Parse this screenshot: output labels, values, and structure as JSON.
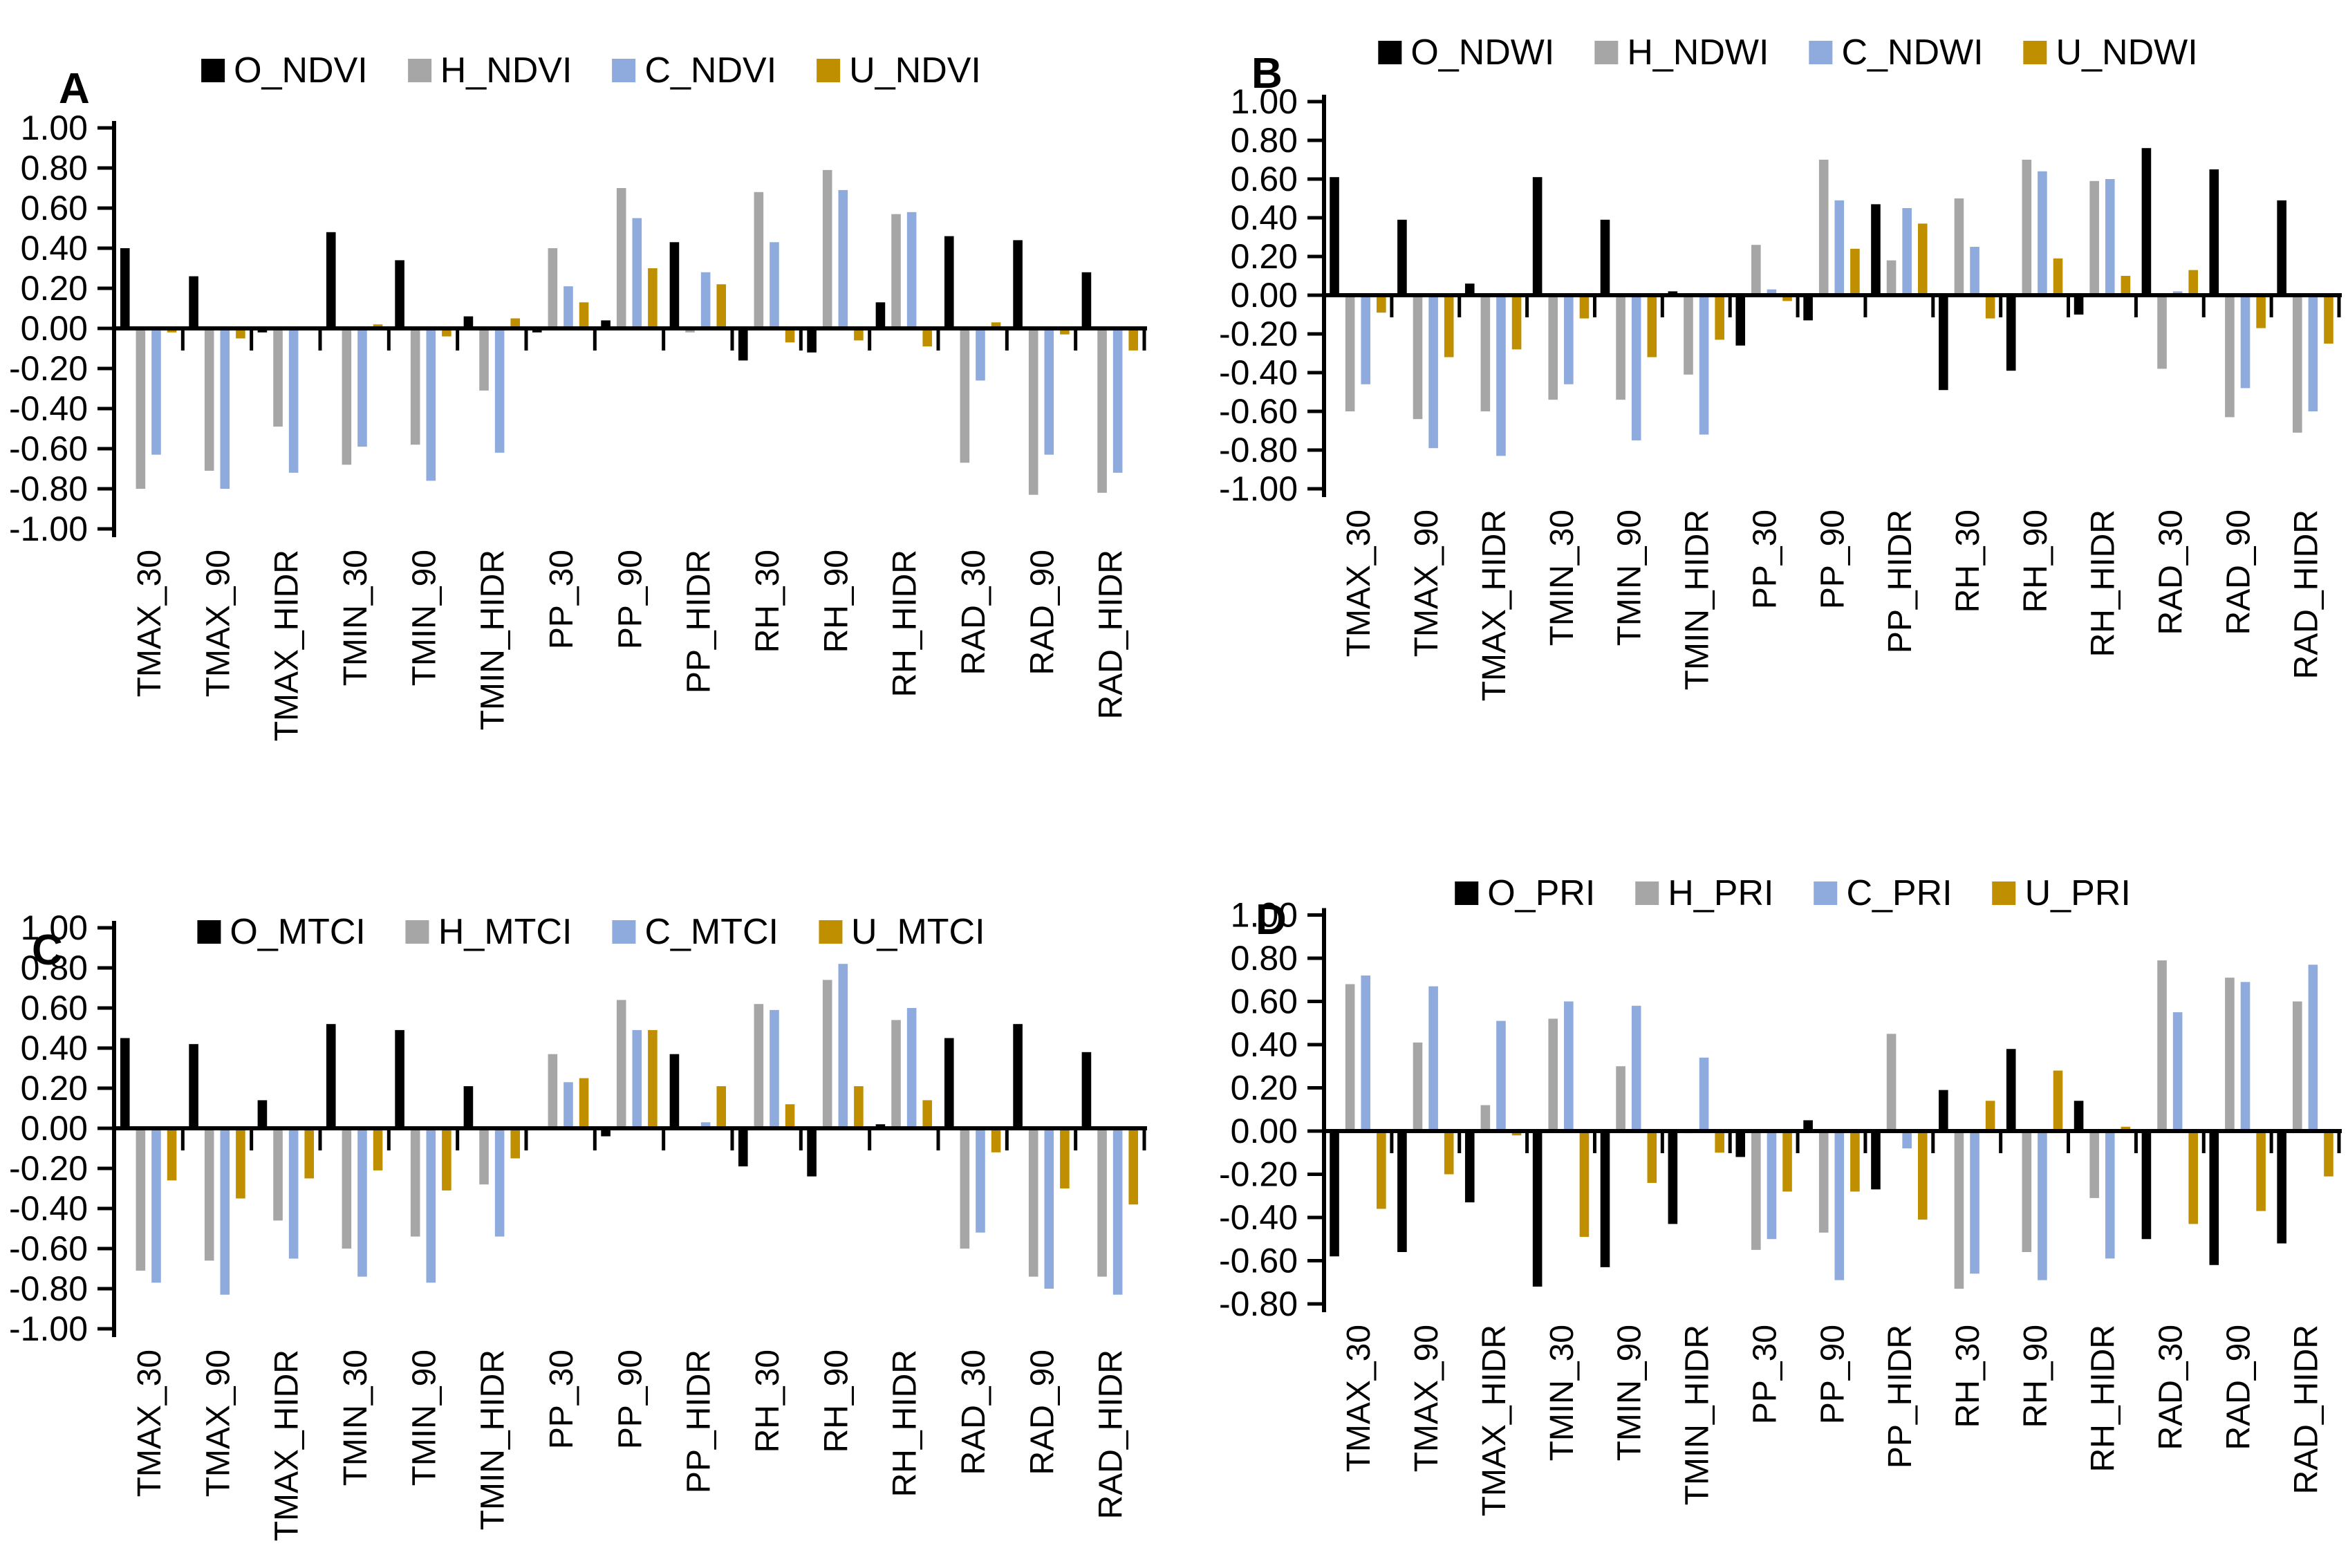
{
  "chart_data": [
    {
      "type": "bar",
      "panel_letter": "A",
      "categories": [
        "TMAX_30",
        "TMAX_90",
        "TMAX_HIDR",
        "TMIN_30",
        "TMIN_90",
        "TMIN_HIDR",
        "PP_30",
        "PP_90",
        "PP_HIDR",
        "RH_30",
        "RH_90",
        "RH_HIDR",
        "RAD_30",
        "RAD_90",
        "RAD_HIDR"
      ],
      "series": [
        {
          "name": "O_NDVI",
          "color": "#000000",
          "values": [
            0.4,
            0.26,
            -0.02,
            0.48,
            0.34,
            0.06,
            -0.02,
            0.04,
            0.43,
            -0.16,
            -0.12,
            0.13,
            0.46,
            0.44,
            0.28
          ]
        },
        {
          "name": "H_NDVI",
          "color": "#A6A6A6",
          "values": [
            -0.8,
            -0.71,
            -0.49,
            -0.68,
            -0.58,
            -0.31,
            0.4,
            0.7,
            -0.02,
            0.68,
            0.79,
            0.57,
            -0.67,
            -0.83,
            -0.82
          ]
        },
        {
          "name": "C_NDVI",
          "color": "#8FAADC",
          "values": [
            -0.63,
            -0.8,
            -0.72,
            -0.59,
            -0.76,
            -0.62,
            0.21,
            0.55,
            0.28,
            0.43,
            0.69,
            0.58,
            -0.26,
            -0.63,
            -0.72
          ]
        },
        {
          "name": "U_NDVI",
          "color": "#BF8F00",
          "values": [
            -0.02,
            -0.05,
            -0.01,
            0.02,
            -0.04,
            0.05,
            0.13,
            0.3,
            0.22,
            -0.07,
            -0.06,
            -0.09,
            0.03,
            -0.03,
            -0.11
          ]
        }
      ],
      "ylim": [
        -1.0,
        1.0
      ],
      "ytick_step": 0.2,
      "ytick_labels": [
        "1.00",
        "0.80",
        "0.60",
        "0.40",
        "0.20",
        "0.00",
        "-0.20",
        "-0.40",
        "-0.60",
        "-0.80",
        "-1.00"
      ],
      "legend_position": "top",
      "grid": false
    },
    {
      "type": "bar",
      "panel_letter": "B",
      "categories": [
        "TMAX_30",
        "TMAX_90",
        "TMAX_HIDR",
        "TMIN_30",
        "TMIN_90",
        "TMIN_HIDR",
        "PP_30",
        "PP_90",
        "PP_HIDR",
        "RH_30",
        "RH_90",
        "RH_HIDR",
        "RAD_30",
        "RAD_90",
        "RAD_HIDR"
      ],
      "series": [
        {
          "name": "O_NDWI",
          "color": "#000000",
          "values": [
            0.61,
            0.39,
            0.06,
            0.61,
            0.39,
            0.02,
            -0.26,
            -0.13,
            0.47,
            -0.49,
            -0.39,
            -0.1,
            0.76,
            0.65,
            0.49
          ]
        },
        {
          "name": "H_NDWI",
          "color": "#A6A6A6",
          "values": [
            -0.6,
            -0.64,
            -0.6,
            -0.54,
            -0.54,
            -0.41,
            0.26,
            0.7,
            0.18,
            0.5,
            0.7,
            0.59,
            -0.38,
            -0.63,
            -0.71
          ]
        },
        {
          "name": "C_NDWI",
          "color": "#8FAADC",
          "values": [
            -0.46,
            -0.79,
            -0.83,
            -0.46,
            -0.75,
            -0.72,
            0.03,
            0.49,
            0.45,
            0.25,
            0.64,
            0.6,
            0.02,
            -0.48,
            -0.6
          ]
        },
        {
          "name": "U_NDWI",
          "color": "#BF8F00",
          "values": [
            -0.09,
            -0.32,
            -0.28,
            -0.12,
            -0.32,
            -0.23,
            -0.03,
            0.24,
            0.37,
            -0.12,
            0.19,
            0.1,
            0.13,
            -0.17,
            -0.25
          ]
        }
      ],
      "ylim": [
        -1.0,
        1.0
      ],
      "ytick_step": 0.2,
      "ytick_labels": [
        "1.00",
        "0.80",
        "0.60",
        "0.40",
        "0.20",
        "0.00",
        "-0.20",
        "-0.40",
        "-0.60",
        "-0.80",
        "-1.00"
      ],
      "legend_position": "top",
      "grid": false
    },
    {
      "type": "bar",
      "panel_letter": "C",
      "categories": [
        "TMAX_30",
        "TMAX_90",
        "TMAX_HIDR",
        "TMIN_30",
        "TMIN_90",
        "TMIN_HIDR",
        "PP_30",
        "PP_90",
        "PP_HIDR",
        "RH_30",
        "RH_90",
        "RH_HIDR",
        "RAD_30",
        "RAD_90",
        "RAD_HIDR"
      ],
      "series": [
        {
          "name": "O_MTCI",
          "color": "#000000",
          "values": [
            0.45,
            0.42,
            0.14,
            0.52,
            0.49,
            0.21,
            -0.01,
            -0.04,
            0.37,
            -0.19,
            -0.24,
            0.02,
            0.45,
            0.52,
            0.38
          ]
        },
        {
          "name": "H_MTCI",
          "color": "#A6A6A6",
          "values": [
            -0.71,
            -0.66,
            -0.46,
            -0.6,
            -0.54,
            -0.28,
            0.37,
            0.64,
            -0.01,
            0.62,
            0.74,
            0.54,
            -0.6,
            -0.74,
            -0.74
          ]
        },
        {
          "name": "C_MTCI",
          "color": "#8FAADC",
          "values": [
            -0.77,
            -0.83,
            -0.65,
            -0.74,
            -0.77,
            -0.54,
            0.23,
            0.49,
            0.03,
            0.59,
            0.82,
            0.6,
            -0.52,
            -0.8,
            -0.83
          ]
        },
        {
          "name": "U_MTCI",
          "color": "#BF8F00",
          "values": [
            -0.26,
            -0.35,
            -0.25,
            -0.21,
            -0.31,
            -0.15,
            0.25,
            0.49,
            0.21,
            0.12,
            0.21,
            0.14,
            -0.12,
            -0.3,
            -0.38
          ]
        }
      ],
      "ylim": [
        -1.0,
        1.0
      ],
      "ytick_step": 0.2,
      "ytick_labels": [
        "1.00",
        "0.80",
        "0.60",
        "0.40",
        "0.20",
        "0.00",
        "-0.20",
        "-0.40",
        "-0.60",
        "-0.80",
        "-1.00"
      ],
      "legend_position": "top",
      "grid": false
    },
    {
      "type": "bar",
      "panel_letter": "D",
      "categories": [
        "TMAX_30",
        "TMAX_90",
        "TMAX_HIDR",
        "TMIN_30",
        "TMIN_90",
        "TMIN_HIDR",
        "PP_30",
        "PP_90",
        "PP_HIDR",
        "RH_30",
        "RH_90",
        "RH_HIDR",
        "RAD_30",
        "RAD_90",
        "RAD_HIDR"
      ],
      "series": [
        {
          "name": "O_PRI",
          "color": "#000000",
          "values": [
            -0.58,
            -0.56,
            -0.33,
            -0.72,
            -0.63,
            -0.43,
            -0.12,
            0.05,
            -0.27,
            0.19,
            0.38,
            0.14,
            -0.5,
            -0.62,
            -0.52
          ]
        },
        {
          "name": "H_PRI",
          "color": "#A6A6A6",
          "values": [
            0.68,
            0.41,
            0.12,
            0.52,
            0.3,
            -0.01,
            -0.55,
            -0.47,
            0.45,
            -0.73,
            -0.56,
            -0.31,
            0.79,
            0.71,
            0.6
          ]
        },
        {
          "name": "C_PRI",
          "color": "#8FAADC",
          "values": [
            0.72,
            0.67,
            0.51,
            0.6,
            0.58,
            0.34,
            -0.5,
            -0.69,
            -0.08,
            -0.66,
            -0.69,
            -0.59,
            0.55,
            0.69,
            0.77
          ]
        },
        {
          "name": "U_PRI",
          "color": "#BF8F00",
          "values": [
            -0.36,
            -0.2,
            -0.02,
            -0.49,
            -0.24,
            -0.1,
            -0.28,
            -0.28,
            -0.41,
            0.14,
            0.28,
            0.02,
            -0.43,
            -0.37,
            -0.21
          ]
        }
      ],
      "ylim": [
        -0.8,
        1.0
      ],
      "ytick_step": 0.2,
      "ytick_labels": [
        "1.00",
        "0.80",
        "0.60",
        "0.40",
        "0.20",
        "0.00",
        "-0.20",
        "-0.40",
        "-0.60",
        "-0.80"
      ],
      "legend_position": "top",
      "grid": false
    }
  ],
  "ui": {
    "background_color": "#FFFFFF",
    "axis_color": "#000000",
    "series_colors": {
      "O": "#000000",
      "H": "#A6A6A6",
      "C": "#8FAADC",
      "U": "#BF8F00"
    }
  }
}
